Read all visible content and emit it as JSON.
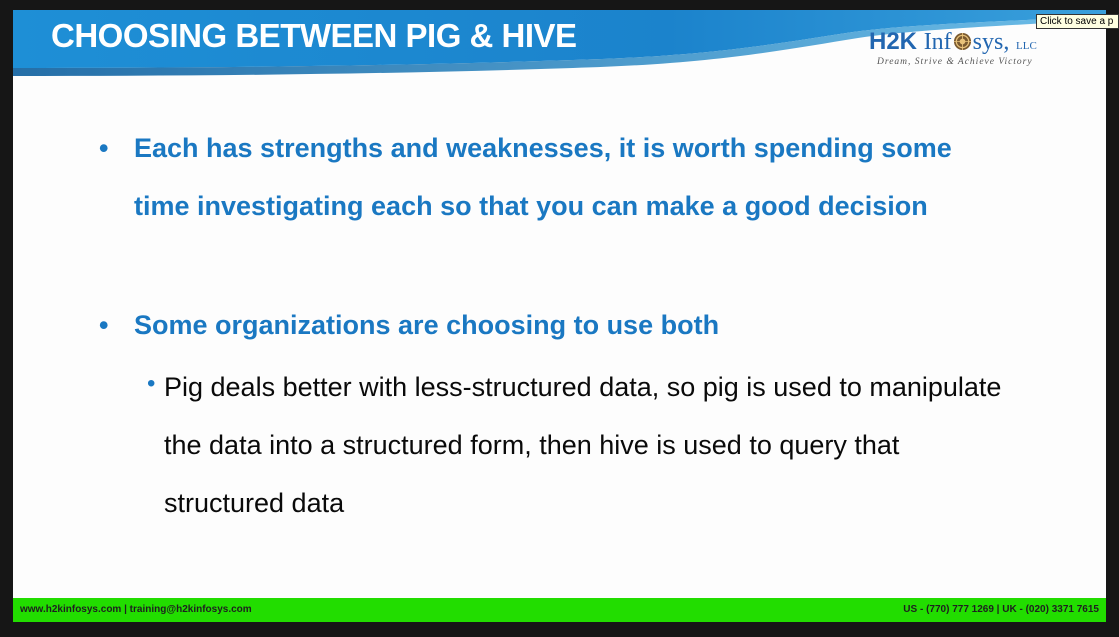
{
  "slide": {
    "title": "CHOOSING BETWEEN PIG & HIVE",
    "logo": {
      "part1": "H2K",
      "part2": "Inf",
      "part3": "sys,",
      "suffix": "LLC",
      "tagline": "Dream, Strive & Achieve Victory",
      "icon": "globe-icon"
    },
    "bullets": [
      {
        "marker": "•",
        "text": "Each has strengths and weaknesses, it is worth spending some time investigating each so that you can make a good decision"
      },
      {
        "marker": "•",
        "text": "Some organizations are choosing to use both"
      }
    ],
    "sub_bullets": [
      {
        "marker": "•",
        "text": "Pig deals better with less-structured data, so pig is used to manipulate the data into a structured form, then hive is used to query that structured data"
      }
    ],
    "footer": {
      "left": "www.h2kinfosys.com  |  training@h2kinfosys.com",
      "right": "US - (770) 777 1269  |  UK - (020) 3371 7615"
    }
  },
  "tooltip": {
    "text": "Click to save a p"
  },
  "colors": {
    "banner_blue": "#1b87d0",
    "bullet_blue": "#1a78c2",
    "footer_green": "#22dd00"
  }
}
